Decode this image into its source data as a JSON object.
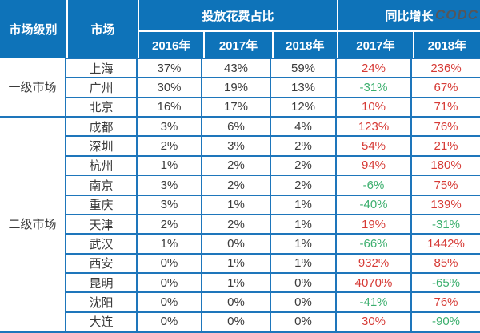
{
  "table": {
    "header": {
      "market_level": "市场级别",
      "market": "市场",
      "spend_share": "投放花费占比",
      "yoy_growth": "同比增长",
      "logo": "CODC",
      "spend_years": [
        "2016年",
        "2017年",
        "2018年"
      ],
      "yoy_years": [
        "2017年",
        "2018年"
      ]
    },
    "tiers": [
      {
        "label": "一级市场",
        "row_span": 3
      },
      {
        "label": "二级市场",
        "row_span": 11
      }
    ],
    "rows": [
      {
        "city": "上海",
        "spend": [
          "37%",
          "43%",
          "59%"
        ],
        "yoy": [
          "24%",
          "236%"
        ]
      },
      {
        "city": "广州",
        "spend": [
          "30%",
          "19%",
          "13%"
        ],
        "yoy": [
          "-31%",
          "67%"
        ]
      },
      {
        "city": "北京",
        "spend": [
          "16%",
          "17%",
          "12%"
        ],
        "yoy": [
          "10%",
          "71%"
        ]
      },
      {
        "city": "成都",
        "spend": [
          "3%",
          "6%",
          "4%"
        ],
        "yoy": [
          "123%",
          "76%"
        ]
      },
      {
        "city": "深圳",
        "spend": [
          "2%",
          "3%",
          "2%"
        ],
        "yoy": [
          "54%",
          "21%"
        ]
      },
      {
        "city": "杭州",
        "spend": [
          "1%",
          "2%",
          "2%"
        ],
        "yoy": [
          "94%",
          "180%"
        ]
      },
      {
        "city": "南京",
        "spend": [
          "3%",
          "2%",
          "2%"
        ],
        "yoy": [
          "-6%",
          "75%"
        ]
      },
      {
        "city": "重庆",
        "spend": [
          "3%",
          "1%",
          "1%"
        ],
        "yoy": [
          "-40%",
          "139%"
        ]
      },
      {
        "city": "天津",
        "spend": [
          "2%",
          "2%",
          "1%"
        ],
        "yoy": [
          "19%",
          "-31%"
        ]
      },
      {
        "city": "武汉",
        "spend": [
          "1%",
          "0%",
          "1%"
        ],
        "yoy": [
          "-66%",
          "1442%"
        ]
      },
      {
        "city": "西安",
        "spend": [
          "0%",
          "1%",
          "1%"
        ],
        "yoy": [
          "932%",
          "85%"
        ]
      },
      {
        "city": "昆明",
        "spend": [
          "0%",
          "1%",
          "0%"
        ],
        "yoy": [
          "4070%",
          "-65%"
        ]
      },
      {
        "city": "沈阳",
        "spend": [
          "0%",
          "0%",
          "0%"
        ],
        "yoy": [
          "-41%",
          "76%"
        ]
      },
      {
        "city": "大连",
        "spend": [
          "0%",
          "0%",
          "0%"
        ],
        "yoy": [
          "30%",
          "-90%"
        ]
      }
    ]
  },
  "colors": {
    "header_bg": "#0e73b9",
    "border": "#1e76bb",
    "positive": "#d63a35",
    "negative": "#3caf6e",
    "text": "#3b3b3b",
    "logo": "#55565a"
  },
  "chart_data": {
    "type": "table",
    "title": "",
    "column_groups": [
      "市场级别",
      "市场",
      "投放花费占比",
      "同比增长"
    ],
    "columns": [
      "市场级别",
      "市场",
      "投放花费占比 2016年",
      "投放花费占比 2017年",
      "投放花费占比 2018年",
      "同比增长 2017年",
      "同比增长 2018年"
    ],
    "rows": [
      [
        "一级市场",
        "上海",
        "37%",
        "43%",
        "59%",
        "24%",
        "236%"
      ],
      [
        "一级市场",
        "广州",
        "30%",
        "19%",
        "13%",
        "-31%",
        "67%"
      ],
      [
        "一级市场",
        "北京",
        "16%",
        "17%",
        "12%",
        "10%",
        "71%"
      ],
      [
        "二级市场",
        "成都",
        "3%",
        "6%",
        "4%",
        "123%",
        "76%"
      ],
      [
        "二级市场",
        "深圳",
        "2%",
        "3%",
        "2%",
        "54%",
        "21%"
      ],
      [
        "二级市场",
        "杭州",
        "1%",
        "2%",
        "2%",
        "94%",
        "180%"
      ],
      [
        "二级市场",
        "南京",
        "3%",
        "2%",
        "2%",
        "-6%",
        "75%"
      ],
      [
        "二级市场",
        "重庆",
        "3%",
        "1%",
        "1%",
        "-40%",
        "139%"
      ],
      [
        "二级市场",
        "天津",
        "2%",
        "2%",
        "1%",
        "19%",
        "-31%"
      ],
      [
        "二级市场",
        "武汉",
        "1%",
        "0%",
        "1%",
        "-66%",
        "1442%"
      ],
      [
        "二级市场",
        "西安",
        "0%",
        "1%",
        "1%",
        "932%",
        "85%"
      ],
      [
        "二级市场",
        "昆明",
        "0%",
        "1%",
        "0%",
        "4070%",
        "-65%"
      ],
      [
        "二级市场",
        "沈阳",
        "0%",
        "0%",
        "0%",
        "-41%",
        "76%"
      ],
      [
        "二级市场",
        "大连",
        "0%",
        "0%",
        "0%",
        "30%",
        "-90%"
      ]
    ],
    "value_color_rule": "positive yoy = red, negative yoy = green"
  }
}
